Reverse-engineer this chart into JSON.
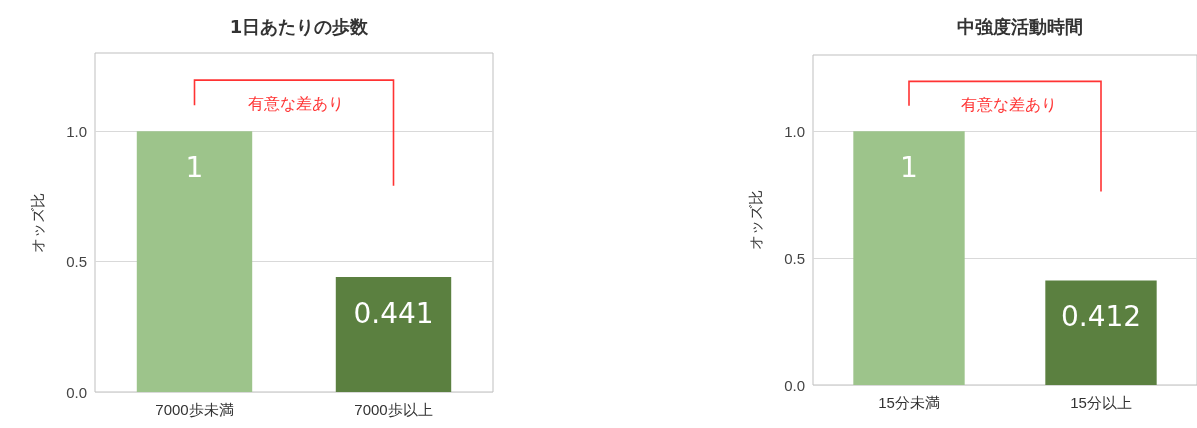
{
  "chart_data": [
    {
      "type": "bar",
      "title": "1日あたりの歩数",
      "ylabel": "オッズ比",
      "categories": [
        "7000歩未満",
        "7000歩以上"
      ],
      "values": [
        1,
        0.441
      ],
      "colors": [
        "#9dc48b",
        "#5b8040"
      ],
      "ylim": [
        0,
        1.3
      ],
      "yticks": [
        {
          "value": 0,
          "label": "0.0"
        },
        {
          "value": 0.5,
          "label": "0.5"
        },
        {
          "value": 1,
          "label": "1.0"
        }
      ],
      "grid": "y",
      "data_labels": true,
      "annotations": [
        "有意な差あり"
      ]
    },
    {
      "type": "bar",
      "title": "中強度活動時間",
      "ylabel": "オッズ比",
      "categories": [
        "15分未満",
        "15分以上"
      ],
      "values": [
        1,
        0.412
      ],
      "colors": [
        "#9dc48b",
        "#5b8040"
      ],
      "ylim": [
        0,
        1.3
      ],
      "yticks": [
        {
          "value": 0,
          "label": "0.0"
        },
        {
          "value": 0.5,
          "label": "0.5"
        },
        {
          "value": 1,
          "label": "1.0"
        }
      ],
      "grid": "y",
      "data_labels": true,
      "annotations": [
        "有意な差あり"
      ]
    }
  ]
}
